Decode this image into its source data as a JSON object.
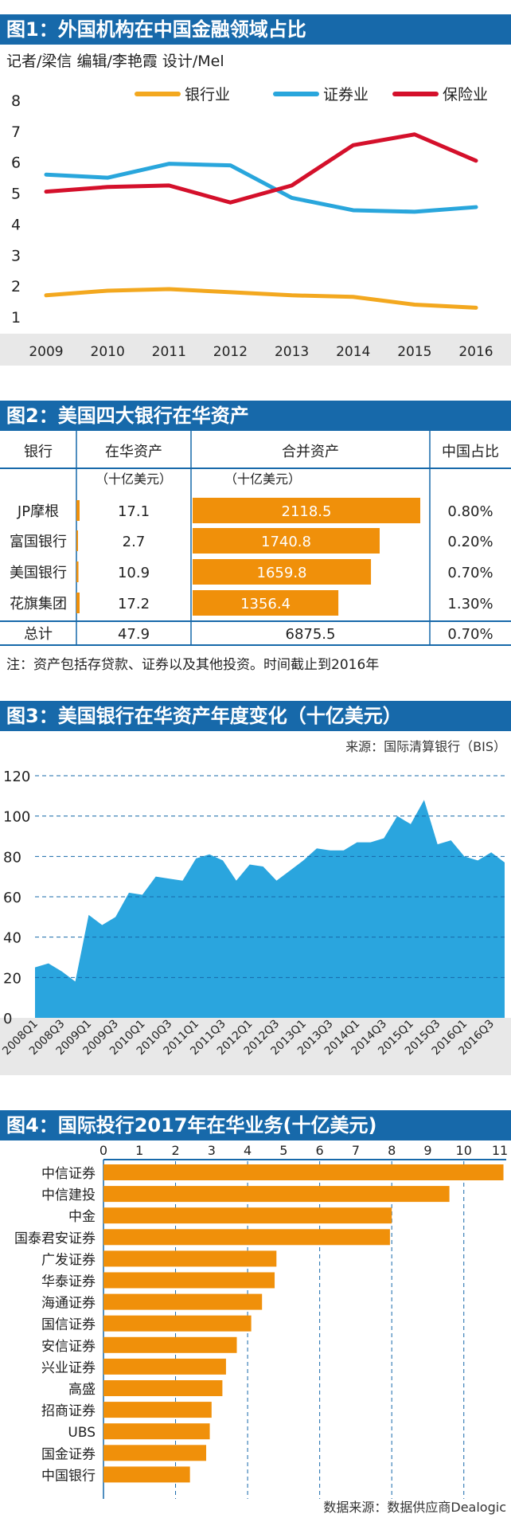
{
  "colors": {
    "header_bg": "#1769aa",
    "banking": "#f3a81f",
    "securities": "#29a6dc",
    "insurance": "#d4102b",
    "bar_orange": "#f0900a",
    "area_blue": "#2aa5de",
    "plot_bg": "#e8e8e8"
  },
  "fig1": {
    "title": "图1：外国机构在中国金融领域占比",
    "credit": "记者/梁信  编辑/李艳霞  设计/Mel"
  },
  "fig2": {
    "title": "图2：美国四大银行在华资产",
    "headers": [
      "银行",
      "在华资产",
      "合并资产",
      "中国占比"
    ],
    "units": [
      "（十亿美元）",
      "（十亿美元）"
    ],
    "rows": [
      {
        "bank": "JP摩根",
        "china": "17.1",
        "total": "2118.5",
        "share": "0.80%"
      },
      {
        "bank": "富国银行",
        "china": "2.7",
        "total": "1740.8",
        "share": "0.20%"
      },
      {
        "bank": "美国银行",
        "china": "10.9",
        "total": "1659.8",
        "share": "0.70%"
      },
      {
        "bank": "花旗集团",
        "china": "17.2",
        "total": "1356.4",
        "share": "1.30%"
      }
    ],
    "total_row": {
      "bank": "总计",
      "china": "47.9",
      "total": "6875.5",
      "share": "0.70%"
    },
    "note": "注：资产包括存贷款、证券以及其他投资。时间截止到2016年"
  },
  "fig3": {
    "title": "图3：美国银行在华资产年度变化（十亿美元）",
    "source": "来源：国际清算银行（BIS）"
  },
  "fig4": {
    "title": "图4：国际投行2017年在华业务(十亿美元)",
    "source": "数据来源：数据供应商Dealogic"
  },
  "chart_data": [
    {
      "type": "line",
      "x": [
        "2009",
        "2010",
        "2011",
        "2012",
        "2013",
        "2014",
        "2015",
        "2016"
      ],
      "ylim": [
        1,
        8
      ],
      "yticks": [
        "1",
        "2",
        "3",
        "4",
        "5",
        "6",
        "7",
        "8"
      ],
      "legend": "top",
      "series": [
        {
          "name": "银行业",
          "color": "#f3a81f",
          "values": [
            1.7,
            1.85,
            1.9,
            1.8,
            1.7,
            1.65,
            1.4,
            1.3
          ]
        },
        {
          "name": "证券业",
          "color": "#29a6dc",
          "values": [
            5.6,
            5.5,
            5.95,
            5.9,
            4.85,
            4.45,
            4.4,
            4.55
          ]
        },
        {
          "name": "保险业",
          "color": "#d4102b",
          "values": [
            5.05,
            5.2,
            5.25,
            4.7,
            5.25,
            6.55,
            6.9,
            6.05
          ]
        }
      ]
    },
    {
      "type": "table",
      "columns": [
        "银行",
        "在华资产",
        "合并资产",
        "中国占比"
      ],
      "bank": [
        "JP摩根",
        "富国银行",
        "美国银行",
        "花旗集团"
      ],
      "china_assets": [
        17.1,
        2.7,
        10.9,
        17.2
      ],
      "total_assets": [
        2118.5,
        1740.8,
        1659.8,
        1356.4
      ],
      "china_share": [
        "0.80%",
        "0.20%",
        "0.70%",
        "1.30%"
      ]
    },
    {
      "type": "area",
      "ylim": [
        0,
        120
      ],
      "yticks": [
        "0",
        "20",
        "40",
        "60",
        "80",
        "100",
        "120"
      ],
      "xlabels": [
        "2008Q1",
        "2008Q3",
        "2009Q1",
        "2009Q3",
        "2010Q1",
        "2010Q3",
        "2011Q1",
        "2011Q3",
        "2012Q1",
        "2012Q3",
        "2013Q1",
        "2013Q3",
        "2014Q1",
        "2014Q3",
        "2015Q1",
        "2015Q3",
        "2016Q1",
        "2016Q3"
      ],
      "values": [
        25,
        27,
        23,
        18,
        51,
        46,
        50,
        62,
        61,
        70,
        69,
        68,
        79,
        81,
        78,
        68,
        76,
        75,
        68,
        73,
        78,
        84,
        83,
        83,
        87,
        87,
        89,
        100,
        96,
        108,
        86,
        88,
        80,
        78,
        82,
        77
      ],
      "color": "#2aa5de"
    },
    {
      "type": "bar",
      "orientation": "horizontal",
      "xlim": [
        0,
        11
      ],
      "xticks": [
        "0",
        "1",
        "2",
        "3",
        "4",
        "5",
        "6",
        "7",
        "8",
        "9",
        "10",
        "11"
      ],
      "categories": [
        "中信证券",
        "中信建投",
        "中金",
        "国泰君安证券",
        "广发证券",
        "华泰证券",
        "海通证券",
        "国信证券",
        "安信证券",
        "兴业证券",
        "高盛",
        "招商证券",
        "UBS",
        "国金证券",
        "中国银行"
      ],
      "values": [
        11.1,
        9.6,
        8.0,
        7.95,
        4.8,
        4.75,
        4.4,
        4.1,
        3.7,
        3.4,
        3.3,
        3.0,
        2.95,
        2.85,
        2.4
      ],
      "color": "#f0900a"
    }
  ]
}
